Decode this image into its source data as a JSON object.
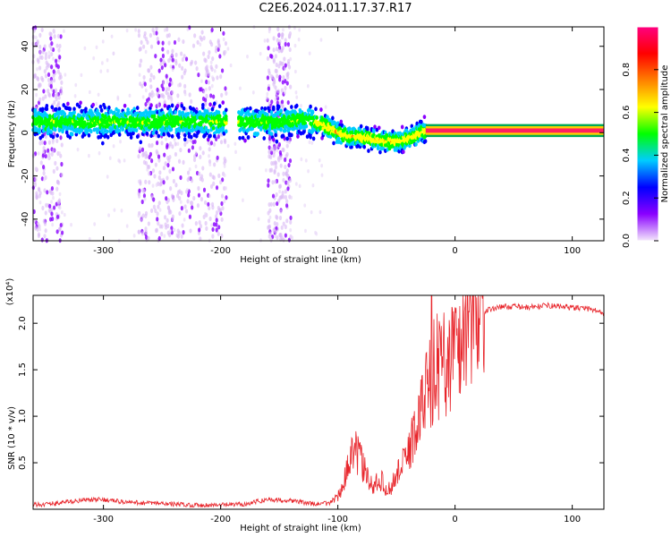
{
  "title": "C2E6.2024.011.17.37.R17",
  "chart_data": [
    {
      "type": "heatmap",
      "xlabel": "Height of straight line (km)",
      "ylabel": "Frequency (Hz)",
      "xlim": [
        -360,
        127
      ],
      "ylim": [
        -50,
        49
      ],
      "xticks": [
        -300,
        -200,
        -100,
        0,
        100
      ],
      "yticks": [
        -40,
        -20,
        0,
        20,
        40
      ],
      "colorbar": {
        "label": "Normalized spectral amplitude",
        "range": [
          0.0,
          1.0
        ],
        "ticks": [
          "0.0",
          "0.2",
          "0.4",
          "0.6",
          "0.8"
        ],
        "colors": [
          "#f4e8fb",
          "#8a00ff",
          "#0000ff",
          "#00ccff",
          "#00ff00",
          "#ffff00",
          "#ff8000",
          "#ff0000",
          "#ff0080"
        ]
      },
      "ridge": {
        "x": [
          -360,
          -300,
          -250,
          -200,
          -150,
          -125,
          -110,
          -100,
          -90,
          -80,
          -70,
          -60,
          -50,
          -40,
          -30,
          -20,
          0,
          50,
          90,
          127
        ],
        "freq_center_hz": [
          5,
          5,
          5,
          5,
          5,
          6,
          3,
          0,
          -2,
          -2,
          -3,
          -4,
          -4,
          -3,
          0,
          1,
          1,
          1,
          1,
          1
        ]
      }
    },
    {
      "type": "line",
      "xlabel": "Height of straight line (km)",
      "ylabel": "SNR (10 * v/v)",
      "multiplier": "(x10⁴)",
      "xlim": [
        -360,
        127
      ],
      "ylim": [
        0,
        2.3
      ],
      "xticks": [
        -300,
        -200,
        -100,
        0,
        100
      ],
      "yticks": [
        "0.5",
        "1.0",
        "1.5",
        "2.0"
      ],
      "series": [
        {
          "color": "#e8252b",
          "x": [
            -360,
            -340,
            -320,
            -300,
            -280,
            -260,
            -240,
            -220,
            -200,
            -180,
            -160,
            -140,
            -120,
            -110,
            -100,
            -95,
            -90,
            -85,
            -80,
            -75,
            -70,
            -65,
            -60,
            -55,
            -50,
            -45,
            -40,
            -35,
            -30,
            -25,
            -20,
            -15,
            -10,
            -5,
            0,
            5,
            10,
            15,
            20,
            25,
            30,
            40,
            50,
            60,
            70,
            80,
            90,
            100,
            110,
            120,
            127
          ],
          "y": [
            0.02,
            0.04,
            0.07,
            0.08,
            0.05,
            0.04,
            0.03,
            0.02,
            0.02,
            0.03,
            0.08,
            0.07,
            0.03,
            0.04,
            0.12,
            0.25,
            0.45,
            0.55,
            0.45,
            0.3,
            0.2,
            0.3,
            0.22,
            0.18,
            0.35,
            0.4,
            0.55,
            0.7,
            0.9,
            1.1,
            1.3,
            1.35,
            1.4,
            1.45,
            1.5,
            1.6,
            1.75,
            1.9,
            2.05,
            2.12,
            2.15,
            2.18,
            2.18,
            2.17,
            2.18,
            2.19,
            2.18,
            2.17,
            2.16,
            2.14,
            2.1
          ]
        }
      ]
    }
  ]
}
